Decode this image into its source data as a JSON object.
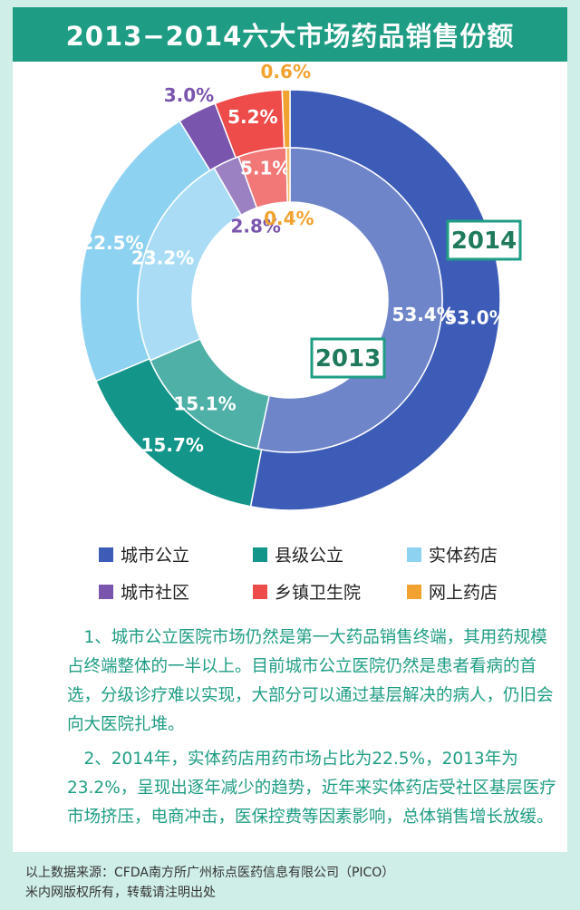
{
  "title": "2013−2014六大市场药品销售份额",
  "chart_data": {
    "type": "pie",
    "variant": "double-donut",
    "categories": [
      "城市公立",
      "县级公立",
      "实体药店",
      "城市社区",
      "乡镇卫生院",
      "网上药店"
    ],
    "colors": [
      "#3d5cb8",
      "#14958a",
      "#8ed2f2",
      "#7a55ad",
      "#ee4b4b",
      "#f2a230"
    ],
    "series": [
      {
        "name": "2014",
        "values": [
          53.0,
          15.7,
          22.5,
          3.0,
          5.2,
          0.6
        ],
        "labels": [
          "53.0%",
          "15.7%",
          "22.5%",
          "3.0%",
          "5.2%",
          "0.6%"
        ]
      },
      {
        "name": "2013",
        "values": [
          53.4,
          15.1,
          23.2,
          2.8,
          5.1,
          0.4
        ],
        "labels": [
          "53.4%",
          "15.1%",
          "23.2%",
          "2.8%",
          "5.1%",
          "0.4%"
        ]
      }
    ]
  },
  "legend": [
    {
      "label": "城市公立",
      "color": "#3d5cb8"
    },
    {
      "label": "县级公立",
      "color": "#14958a"
    },
    {
      "label": "实体药店",
      "color": "#8ed2f2"
    },
    {
      "label": "城市社区",
      "color": "#7a55ad"
    },
    {
      "label": "乡镇卫生院",
      "color": "#ee4b4b"
    },
    {
      "label": "网上药店",
      "color": "#f2a230"
    }
  ],
  "notes": [
    "1、城市公立医院市场仍然是第一大药品销售终端，其用药规模占终端整体的一半以上。目前城市公立医院仍然是患者看病的首选，分级诊疗难以实现，大部分可以通过基层解决的病人，仍旧会向大医院扎堆。",
    "2、2014年，实体药店用药市场占比为22.5%，2013年为23.2%，呈现出逐年减少的趋势，近年来实体药店受社区基层医疗市场挤压，电商冲击，医保控费等因素影响，总体销售增长放缓。"
  ],
  "footer": {
    "source": "以上数据来源：CFDA南方所广州标点医药信息有限公司（PICO）",
    "copyright": "米内网版权所有，转载请注明出处"
  }
}
